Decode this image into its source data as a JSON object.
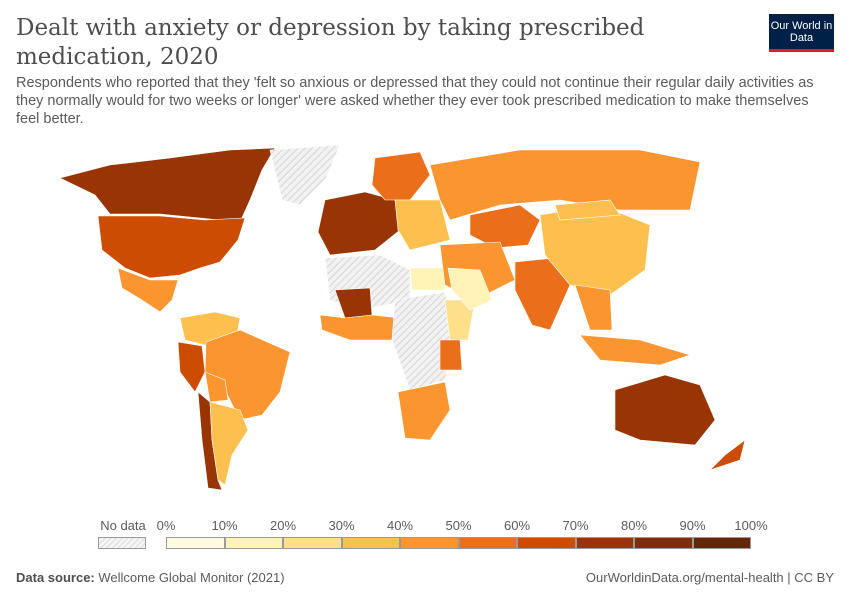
{
  "header": {
    "title": "Dealt with anxiety or depression by taking prescribed medication, 2020",
    "subtitle": "Respondents who reported that they 'felt so anxious or depressed that they could not continue their regular daily activities as they normally would for two weeks or longer' were asked whether they ever took prescribed medication to make themselves feel better.",
    "logo": "Our World in Data"
  },
  "legend": {
    "no_data": "No data",
    "ticks": [
      "0%",
      "10%",
      "20%",
      "30%",
      "40%",
      "50%",
      "60%",
      "70%",
      "80%",
      "90%",
      "100%"
    ],
    "colors": [
      "#fffbe3",
      "#fff3b8",
      "#fedf8a",
      "#fdc04e",
      "#fa9530",
      "#eb6e1a",
      "#cc4c02",
      "#993404",
      "#832c06",
      "#662506"
    ],
    "no_data_color": "#e8e8e8"
  },
  "map": {
    "regions": [
      {
        "name": "Canada",
        "value": 75
      },
      {
        "name": "United States",
        "value": 65
      },
      {
        "name": "Mexico",
        "value": 45
      },
      {
        "name": "Greenland",
        "value": null
      },
      {
        "name": "Colombia/Venezuela",
        "value": 35
      },
      {
        "name": "Peru",
        "value": 65
      },
      {
        "name": "Brazil",
        "value": 45
      },
      {
        "name": "Bolivia",
        "value": 45
      },
      {
        "name": "Chile",
        "value": 75
      },
      {
        "name": "Argentina",
        "value": 35
      },
      {
        "name": "Western Europe",
        "value": 70
      },
      {
        "name": "Scandinavia",
        "value": 55
      },
      {
        "name": "Eastern Europe",
        "value": 35
      },
      {
        "name": "Russia",
        "value": 45
      },
      {
        "name": "Kazakhstan",
        "value": 55
      },
      {
        "name": "North Africa",
        "value": null
      },
      {
        "name": "Egypt",
        "value": 15
      },
      {
        "name": "Mali",
        "value": 75
      },
      {
        "name": "West Africa",
        "value": 45
      },
      {
        "name": "Central Africa",
        "value": null
      },
      {
        "name": "Ethiopia",
        "value": 25
      },
      {
        "name": "Kenya",
        "value": 55
      },
      {
        "name": "Southern Africa",
        "value": 45
      },
      {
        "name": "Middle East",
        "value": 45
      },
      {
        "name": "Saudi Arabia",
        "value": 15
      },
      {
        "name": "India",
        "value": 55
      },
      {
        "name": "China",
        "value": 35
      },
      {
        "name": "Mongolia",
        "value": 35
      },
      {
        "name": "Southeast Asia",
        "value": 45
      },
      {
        "name": "Indonesia",
        "value": 45
      },
      {
        "name": "Australia",
        "value": 75
      },
      {
        "name": "New Zealand",
        "value": 65
      }
    ]
  },
  "footer": {
    "source_label": "Data source:",
    "source": "Wellcome Global Monitor (2021)",
    "url": "OurWorldinData.org/mental-health | CC BY"
  }
}
